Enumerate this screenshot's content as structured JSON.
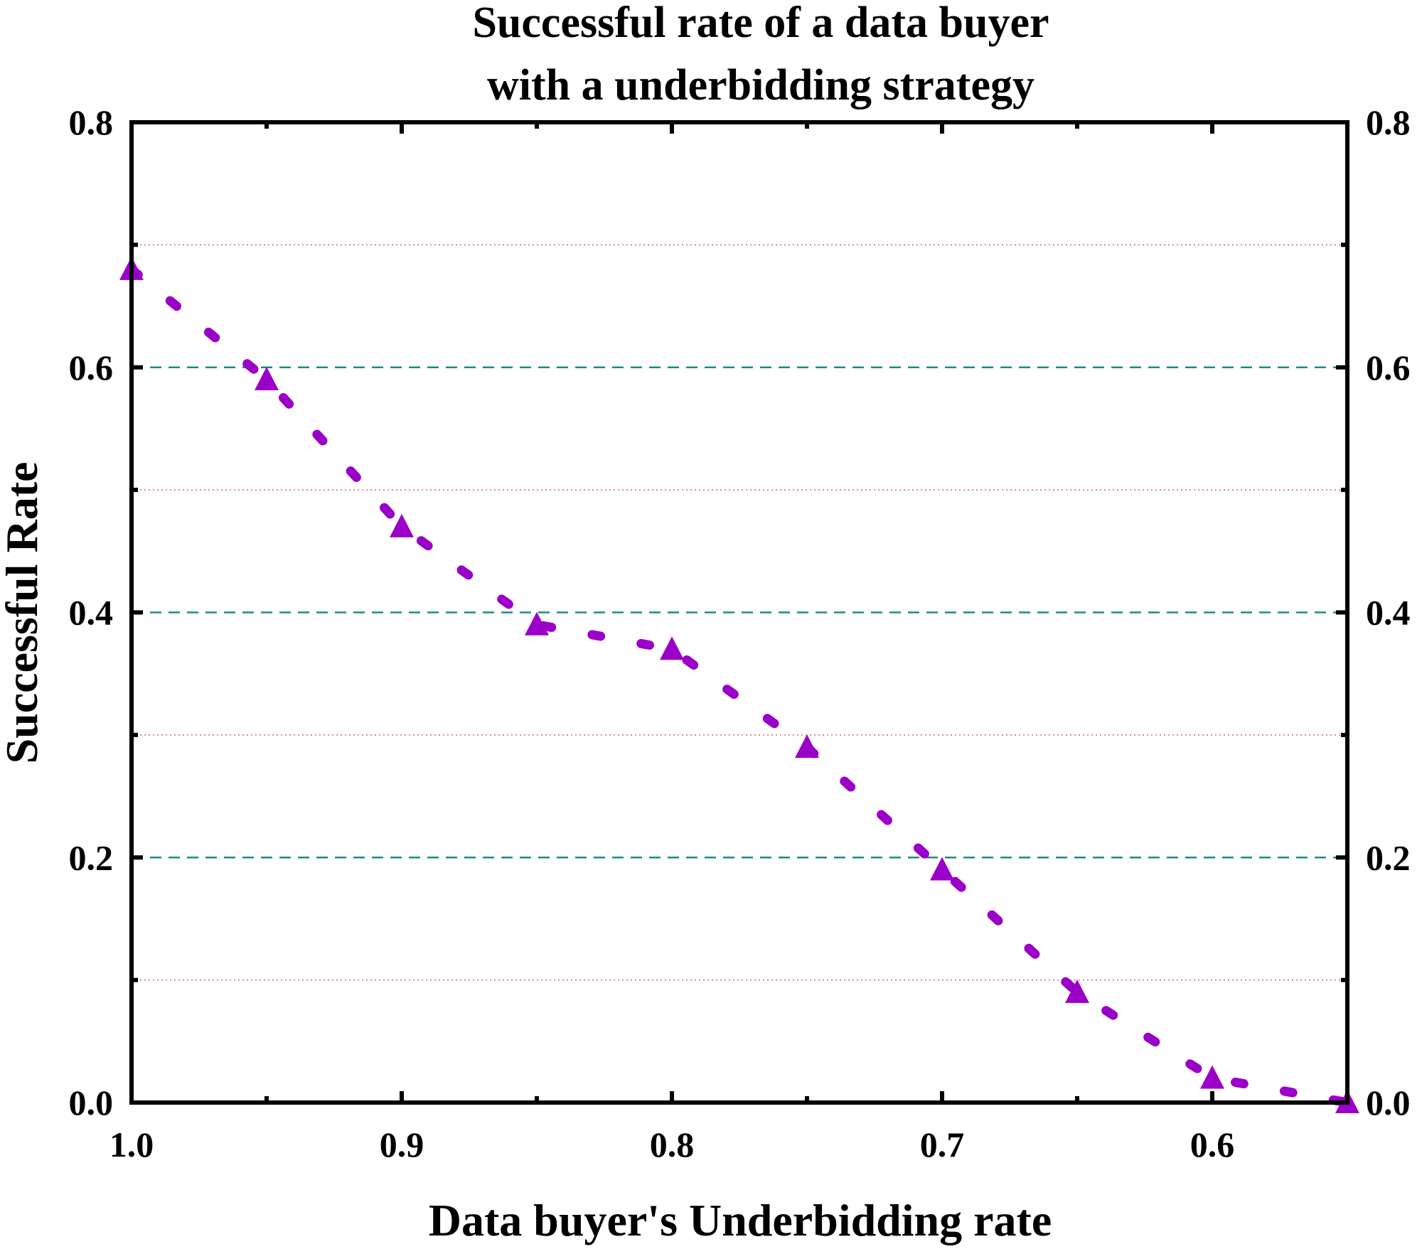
{
  "chart_data": {
    "type": "line",
    "title_lines": [
      "Successful rate of a data buyer",
      "with a underbidding strategy"
    ],
    "xlabel": "Data buyer's Underbidding rate",
    "ylabel": "Successful Rate",
    "xlim": [
      1.0,
      0.55
    ],
    "ylim": [
      0.0,
      0.8
    ],
    "x_ticks": [
      1.0,
      0.9,
      0.8,
      0.7,
      0.6
    ],
    "x_tick_labels": [
      "1.0",
      "0.9",
      "0.8",
      "0.7",
      "0.6"
    ],
    "x_minor_ticks": [
      0.95,
      0.85,
      0.75,
      0.65
    ],
    "y_ticks": [
      0.0,
      0.2,
      0.4,
      0.6,
      0.8
    ],
    "y_tick_labels": [
      "0.0",
      "0.2",
      "0.4",
      "0.6",
      "0.8"
    ],
    "y_minor_ticks": [
      0.1,
      0.3,
      0.5,
      0.7
    ],
    "right_axis_labels": true,
    "grid": {
      "major_y": true,
      "major_color": "#1f8a86",
      "minor_y": true,
      "minor_color": "#e06060"
    },
    "series": [
      {
        "color": "#9b00c8",
        "line_style": "dashed",
        "marker": "triangle",
        "x": [
          1.0,
          0.95,
          0.9,
          0.85,
          0.8,
          0.75,
          0.7,
          0.65,
          0.6,
          0.55
        ],
        "y": [
          0.68,
          0.59,
          0.47,
          0.39,
          0.37,
          0.29,
          0.19,
          0.09,
          0.02,
          0.0
        ]
      }
    ]
  }
}
